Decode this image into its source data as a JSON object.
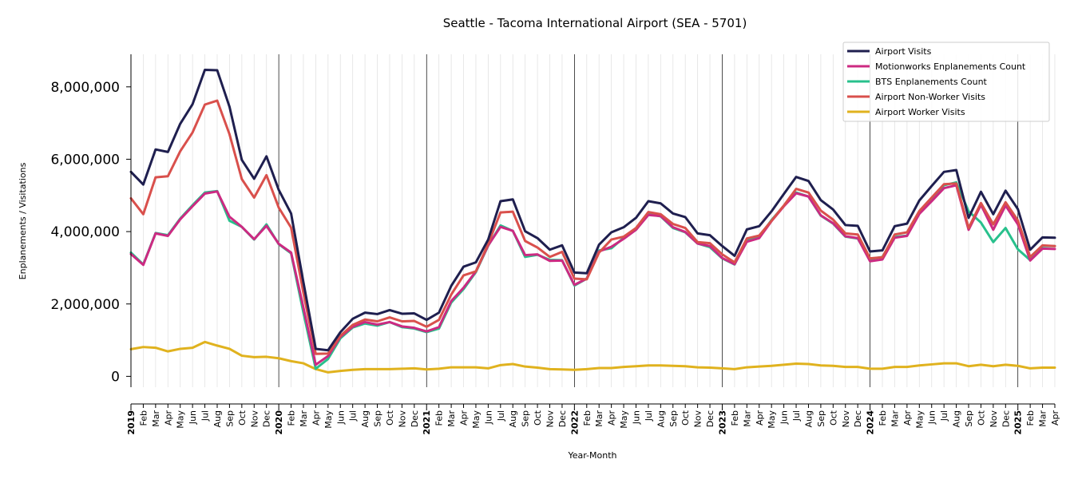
{
  "chart_data": {
    "type": "line",
    "title": "Seattle - Tacoma International Airport (SEA - 5701)",
    "xlabel": "Year-Month",
    "ylabel": "Enplanements / Visitations",
    "ylim": [
      -300000,
      8900000
    ],
    "yticks": [
      0,
      2000000,
      4000000,
      6000000,
      8000000
    ],
    "ytick_labels": [
      "0",
      "2,000,000",
      "4,000,000",
      "6,000,000",
      "8,000,000"
    ],
    "grid": "vertical",
    "legend_position": "top-right",
    "x_start": "2019-01",
    "x_end": "2025-04",
    "month_labels": [
      "Feb",
      "Mar",
      "Apr",
      "May",
      "Jun",
      "Jul",
      "Aug",
      "Sep",
      "Oct",
      "Nov",
      "Dec"
    ],
    "year_labels": [
      "2019",
      "2020",
      "2021",
      "2022",
      "2023",
      "2024",
      "2025"
    ],
    "series": [
      {
        "name": "Airport Visits",
        "color": "#1f1f4f",
        "values": [
          5650000,
          5300000,
          6270000,
          6200000,
          6980000,
          7520000,
          8470000,
          8460000,
          7450000,
          5980000,
          5460000,
          6080000,
          5150000,
          4500000,
          2600000,
          760000,
          720000,
          1220000,
          1590000,
          1760000,
          1720000,
          1830000,
          1730000,
          1740000,
          1560000,
          1760000,
          2500000,
          3030000,
          3150000,
          3780000,
          4840000,
          4890000,
          4010000,
          3820000,
          3500000,
          3620000,
          2870000,
          2850000,
          3640000,
          3980000,
          4120000,
          4380000,
          4840000,
          4780000,
          4500000,
          4400000,
          3950000,
          3900000,
          3600000,
          3330000,
          4060000,
          4150000,
          4560000,
          5040000,
          5510000,
          5400000,
          4870000,
          4610000,
          4180000,
          4160000,
          3450000,
          3480000,
          4150000,
          4220000,
          4860000,
          5260000,
          5650000,
          5700000,
          4380000,
          5100000,
          4480000,
          5130000,
          4620000,
          3500000,
          3840000,
          3830000
        ]
      },
      {
        "name": "Motionworks Enplanements Count",
        "color": "#cc2a82",
        "values": [
          3380000,
          3080000,
          3950000,
          3880000,
          4340000,
          4700000,
          5050000,
          5110000,
          4410000,
          4130000,
          3790000,
          4160000,
          3660000,
          3420000,
          1900000,
          320000,
          560000,
          1090000,
          1370000,
          1500000,
          1430000,
          1500000,
          1380000,
          1340000,
          1240000,
          1360000,
          2080000,
          2450000,
          2900000,
          3620000,
          4130000,
          4020000,
          3350000,
          3370000,
          3190000,
          3200000,
          2530000,
          2700000,
          3450000,
          3580000,
          3800000,
          4050000,
          4460000,
          4430000,
          4120000,
          3990000,
          3670000,
          3600000,
          3270000,
          3100000,
          3720000,
          3820000,
          4290000,
          4700000,
          5060000,
          4970000,
          4450000,
          4230000,
          3870000,
          3820000,
          3180000,
          3230000,
          3830000,
          3880000,
          4490000,
          4840000,
          5200000,
          5280000,
          4050000,
          4740000,
          4050000,
          4720000,
          4200000,
          3200000,
          3530000,
          3520000
        ]
      },
      {
        "name": "BTS Enplanements Count",
        "color": "#28c08c",
        "values": [
          3420000,
          3090000,
          3960000,
          3900000,
          4360000,
          4730000,
          5080000,
          5120000,
          4300000,
          4130000,
          3780000,
          4200000,
          3650000,
          3400000,
          1760000,
          210000,
          480000,
          1050000,
          1350000,
          1460000,
          1400000,
          1500000,
          1360000,
          1320000,
          1220000,
          1320000,
          2040000,
          2410000,
          2880000,
          3610000,
          4170000,
          4020000,
          3300000,
          3360000,
          3220000,
          3210000,
          2510000,
          2700000,
          3480000,
          3540000,
          3830000,
          4050000,
          4490000,
          4420000,
          4100000,
          3980000,
          3670000,
          3570000,
          3260000,
          3090000,
          3770000,
          3850000,
          4320000,
          4710000,
          5080000,
          4970000,
          4440000,
          4220000,
          3860000,
          3810000,
          3240000,
          3300000,
          3850000,
          3890000,
          4520000,
          4880000,
          5280000,
          5360000,
          4560000,
          4250000,
          3710000,
          4100000,
          3510000,
          3210000,
          3600000,
          3600000
        ]
      },
      {
        "name": "Airport Non-Worker Visits",
        "color": "#d9504c",
        "values": [
          4920000,
          4480000,
          5500000,
          5530000,
          6220000,
          6740000,
          7510000,
          7620000,
          6690000,
          5450000,
          4940000,
          5560000,
          4660000,
          4110000,
          2310000,
          620000,
          630000,
          1120000,
          1420000,
          1570000,
          1520000,
          1630000,
          1520000,
          1530000,
          1370000,
          1560000,
          2260000,
          2790000,
          2900000,
          3660000,
          4530000,
          4550000,
          3740000,
          3560000,
          3300000,
          3440000,
          2700000,
          2680000,
          3420000,
          3780000,
          3860000,
          4100000,
          4540000,
          4480000,
          4210000,
          4100000,
          3710000,
          3680000,
          3370000,
          3150000,
          3810000,
          3890000,
          4300000,
          4720000,
          5180000,
          5080000,
          4580000,
          4330000,
          3950000,
          3920000,
          3260000,
          3290000,
          3920000,
          3980000,
          4570000,
          4940000,
          5310000,
          5330000,
          4100000,
          4790000,
          4200000,
          4810000,
          4310000,
          3300000,
          3620000,
          3600000
        ]
      },
      {
        "name": "Airport Worker Visits",
        "color": "#e0b21e",
        "values": [
          750000,
          810000,
          790000,
          690000,
          760000,
          790000,
          950000,
          850000,
          760000,
          570000,
          530000,
          540000,
          500000,
          420000,
          360000,
          200000,
          110000,
          150000,
          180000,
          200000,
          200000,
          200000,
          210000,
          220000,
          190000,
          210000,
          250000,
          250000,
          250000,
          220000,
          310000,
          340000,
          270000,
          240000,
          200000,
          190000,
          180000,
          200000,
          230000,
          230000,
          260000,
          280000,
          300000,
          300000,
          290000,
          280000,
          250000,
          240000,
          220000,
          200000,
          250000,
          270000,
          290000,
          320000,
          350000,
          340000,
          300000,
          290000,
          260000,
          260000,
          210000,
          210000,
          260000,
          260000,
          300000,
          330000,
          360000,
          360000,
          280000,
          320000,
          280000,
          320000,
          290000,
          220000,
          240000,
          240000
        ]
      }
    ]
  }
}
